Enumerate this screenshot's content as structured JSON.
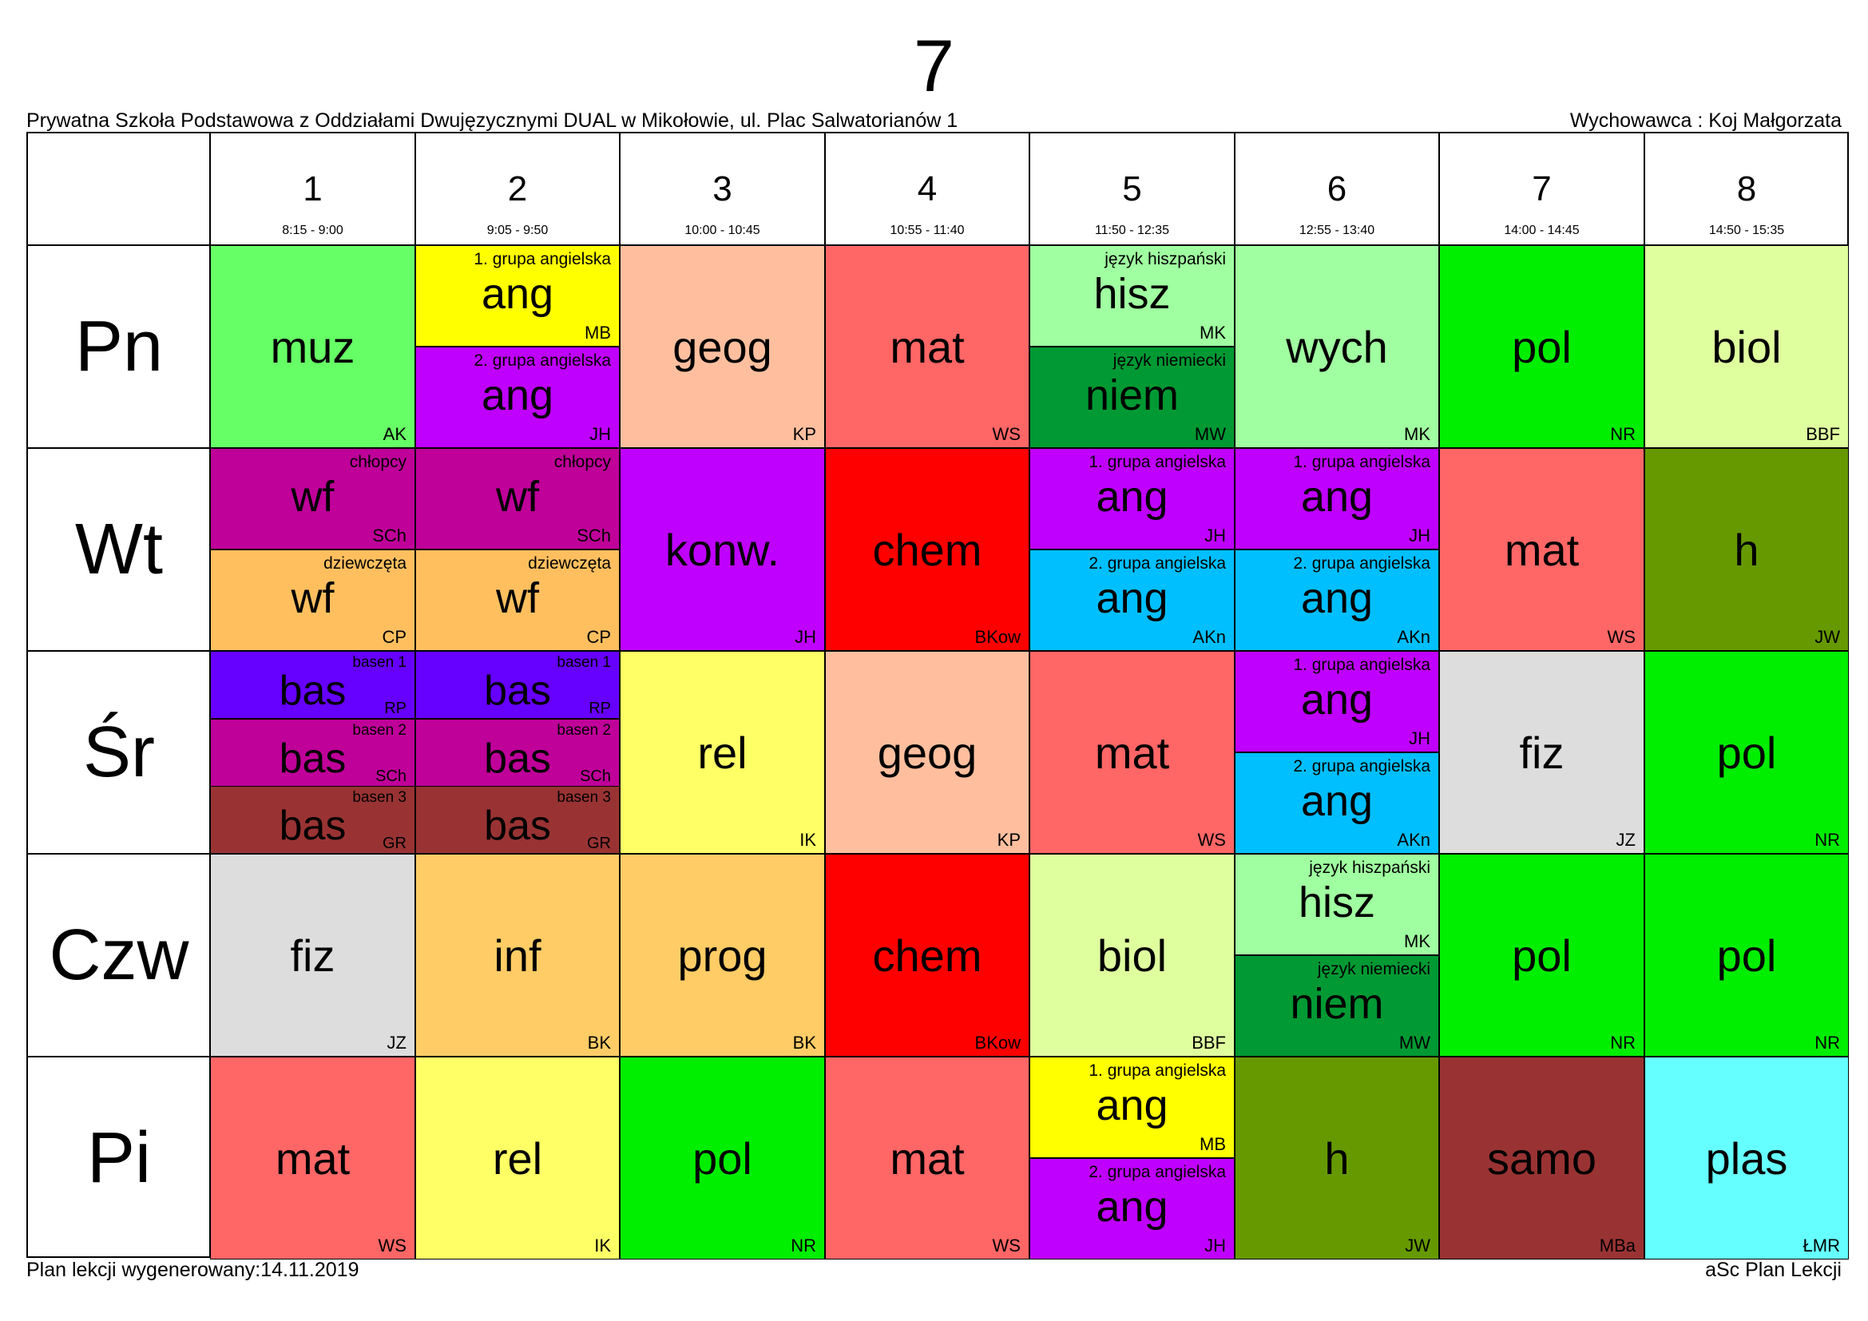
{
  "title": "7",
  "school": "Prywatna Szkoła Podstawowa z Oddziałami Dwujęzycznymi DUAL w Mikołowie, ul. Plac Salwatorianów 1",
  "teacher": "Wychowawca : Koj Małgorzata",
  "footer": {
    "generated": "Plan lekcji wygenerowany:14.11.2019",
    "software": "aSc Plan Lekcji"
  },
  "periods": [
    {
      "num": "1",
      "time": "8:15 - 9:00"
    },
    {
      "num": "2",
      "time": "9:05 - 9:50"
    },
    {
      "num": "3",
      "time": "10:00 - 10:45"
    },
    {
      "num": "4",
      "time": "10:55 - 11:40"
    },
    {
      "num": "5",
      "time": "11:50 - 12:35"
    },
    {
      "num": "6",
      "time": "12:55 - 13:40"
    },
    {
      "num": "7",
      "time": "14:00 - 14:45"
    },
    {
      "num": "8",
      "time": "14:50 - 15:35"
    }
  ],
  "days": [
    "Pn",
    "Wt",
    "Śr",
    "Czw",
    "Pi"
  ],
  "schedule": [
    [
      [
        {
          "subject": "muz",
          "teacher": "AK",
          "color": "#66ff66"
        }
      ],
      [
        {
          "subject": "ang",
          "group": "1. grupa angielska",
          "teacher": "MB",
          "color": "#ffff00"
        },
        {
          "subject": "ang",
          "group": "2. grupa angielska",
          "teacher": "JH",
          "color": "#bf00ff"
        }
      ],
      [
        {
          "subject": "geog",
          "teacher": "KP",
          "color": "#ffbf9f"
        }
      ],
      [
        {
          "subject": "mat",
          "teacher": "WS",
          "color": "#ff6666"
        }
      ],
      [
        {
          "subject": "hisz",
          "group": "język hiszpański",
          "teacher": "MK",
          "color": "#a0ffa0"
        },
        {
          "subject": "niem",
          "group": "język niemiecki",
          "teacher": "MW",
          "color": "#009933"
        }
      ],
      [
        {
          "subject": "wych",
          "teacher": "MK",
          "color": "#a0ffa0"
        }
      ],
      [
        {
          "subject": "pol",
          "teacher": "NR",
          "color": "#00ee00"
        }
      ],
      [
        {
          "subject": "biol",
          "teacher": "BBF",
          "color": "#dfff9f"
        }
      ]
    ],
    [
      [
        {
          "subject": "wf",
          "group": "chłopcy",
          "teacher": "SCh",
          "color": "#bf0099"
        },
        {
          "subject": "wf",
          "group": "dziewczęta",
          "teacher": "CP",
          "color": "#ffbf5f"
        }
      ],
      [
        {
          "subject": "wf",
          "group": "chłopcy",
          "teacher": "SCh",
          "color": "#bf0099"
        },
        {
          "subject": "wf",
          "group": "dziewczęta",
          "teacher": "CP",
          "color": "#ffbf5f"
        }
      ],
      [
        {
          "subject": "konw.",
          "teacher": "JH",
          "color": "#bf00ff"
        }
      ],
      [
        {
          "subject": "chem",
          "teacher": "BKow",
          "color": "#ff0000"
        }
      ],
      [
        {
          "subject": "ang",
          "group": "1. grupa angielska",
          "teacher": "JH",
          "color": "#bf00ff"
        },
        {
          "subject": "ang",
          "group": "2. grupa angielska",
          "teacher": "AKn",
          "color": "#00bfff"
        }
      ],
      [
        {
          "subject": "ang",
          "group": "1. grupa angielska",
          "teacher": "JH",
          "color": "#bf00ff"
        },
        {
          "subject": "ang",
          "group": "2. grupa angielska",
          "teacher": "AKn",
          "color": "#00bfff"
        }
      ],
      [
        {
          "subject": "mat",
          "teacher": "WS",
          "color": "#ff6666"
        }
      ],
      [
        {
          "subject": "h",
          "teacher": "JW",
          "color": "#669900"
        }
      ]
    ],
    [
      [
        {
          "subject": "bas",
          "group": "basen 1",
          "teacher": "RP",
          "color": "#6600ff"
        },
        {
          "subject": "bas",
          "group": "basen 2",
          "teacher": "SCh",
          "color": "#bf0099"
        },
        {
          "subject": "bas",
          "group": "basen 3",
          "teacher": "GR",
          "color": "#993333"
        }
      ],
      [
        {
          "subject": "bas",
          "group": "basen 1",
          "teacher": "RP",
          "color": "#6600ff"
        },
        {
          "subject": "bas",
          "group": "basen 2",
          "teacher": "SCh",
          "color": "#bf0099"
        },
        {
          "subject": "bas",
          "group": "basen 3",
          "teacher": "GR",
          "color": "#993333"
        }
      ],
      [
        {
          "subject": "rel",
          "teacher": "IK",
          "color": "#ffff66"
        }
      ],
      [
        {
          "subject": "geog",
          "teacher": "KP",
          "color": "#ffbf9f"
        }
      ],
      [
        {
          "subject": "mat",
          "teacher": "WS",
          "color": "#ff6666"
        }
      ],
      [
        {
          "subject": "ang",
          "group": "1. grupa angielska",
          "teacher": "JH",
          "color": "#bf00ff"
        },
        {
          "subject": "ang",
          "group": "2. grupa angielska",
          "teacher": "AKn",
          "color": "#00bfff"
        }
      ],
      [
        {
          "subject": "fiz",
          "teacher": "JZ",
          "color": "#dddddd"
        }
      ],
      [
        {
          "subject": "pol",
          "teacher": "NR",
          "color": "#00ee00"
        }
      ]
    ],
    [
      [
        {
          "subject": "fiz",
          "teacher": "JZ",
          "color": "#dddddd"
        }
      ],
      [
        {
          "subject": "inf",
          "teacher": "BK",
          "color": "#ffcc66"
        }
      ],
      [
        {
          "subject": "prog",
          "teacher": "BK",
          "color": "#ffcc66"
        }
      ],
      [
        {
          "subject": "chem",
          "teacher": "BKow",
          "color": "#ff0000"
        }
      ],
      [
        {
          "subject": "biol",
          "teacher": "BBF",
          "color": "#dfff9f"
        }
      ],
      [
        {
          "subject": "hisz",
          "group": "język hiszpański",
          "teacher": "MK",
          "color": "#a0ffa0"
        },
        {
          "subject": "niem",
          "group": "język niemiecki",
          "teacher": "MW",
          "color": "#009933"
        }
      ],
      [
        {
          "subject": "pol",
          "teacher": "NR",
          "color": "#00ee00"
        }
      ],
      [
        {
          "subject": "pol",
          "teacher": "NR",
          "color": "#00ee00"
        }
      ]
    ],
    [
      [
        {
          "subject": "mat",
          "teacher": "WS",
          "color": "#ff6666"
        }
      ],
      [
        {
          "subject": "rel",
          "teacher": "IK",
          "color": "#ffff66"
        }
      ],
      [
        {
          "subject": "pol",
          "teacher": "NR",
          "color": "#00ee00"
        }
      ],
      [
        {
          "subject": "mat",
          "teacher": "WS",
          "color": "#ff6666"
        }
      ],
      [
        {
          "subject": "ang",
          "group": "1. grupa angielska",
          "teacher": "MB",
          "color": "#ffff00"
        },
        {
          "subject": "ang",
          "group": "2. grupa angielska",
          "teacher": "JH",
          "color": "#bf00ff"
        }
      ],
      [
        {
          "subject": "h",
          "teacher": "JW",
          "color": "#669900"
        }
      ],
      [
        {
          "subject": "samo",
          "teacher": "MBa",
          "color": "#993333"
        }
      ],
      [
        {
          "subject": "plas",
          "teacher": "ŁMR",
          "color": "#66ffff"
        }
      ]
    ]
  ]
}
